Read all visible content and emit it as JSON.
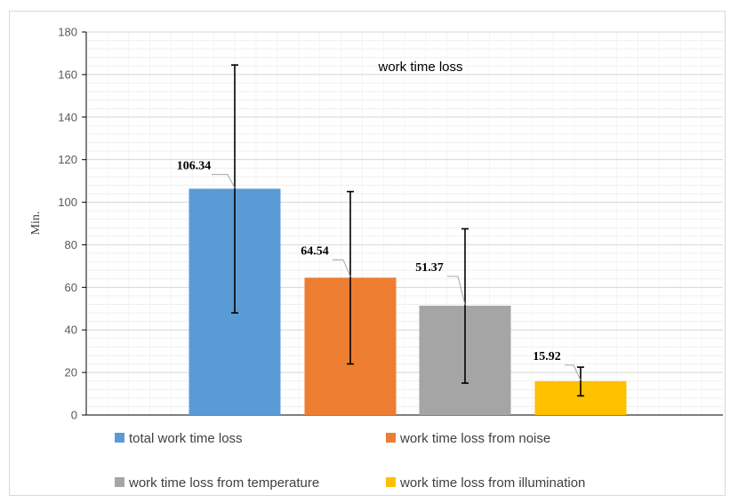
{
  "chart_data": {
    "type": "bar",
    "title": "work time loss",
    "xlabel": "",
    "ylabel": "Min.",
    "ylim": [
      0,
      180
    ],
    "ytick_step": 20,
    "yticks": [
      "0",
      "20",
      "40",
      "60",
      "80",
      "100",
      "120",
      "140",
      "160",
      "180"
    ],
    "grid": true,
    "legend_position": "bottom",
    "series": [
      {
        "name": "total work time loss",
        "value": 106.34,
        "label": "106.34",
        "error_low": 48,
        "error_high": 164.5,
        "color": "#5B9BD5"
      },
      {
        "name": "work time loss from noise",
        "value": 64.54,
        "label": "64.54",
        "error_low": 24,
        "error_high": 105,
        "color": "#ED7D31"
      },
      {
        "name": "work time loss from temperature",
        "value": 51.37,
        "label": "51.37",
        "error_low": 15,
        "error_high": 87.5,
        "color": "#A5A5A5"
      },
      {
        "name": "work time loss from illumination",
        "value": 15.92,
        "label": "15.92",
        "error_low": 9,
        "error_high": 22.5,
        "color": "#FFC000"
      }
    ]
  }
}
